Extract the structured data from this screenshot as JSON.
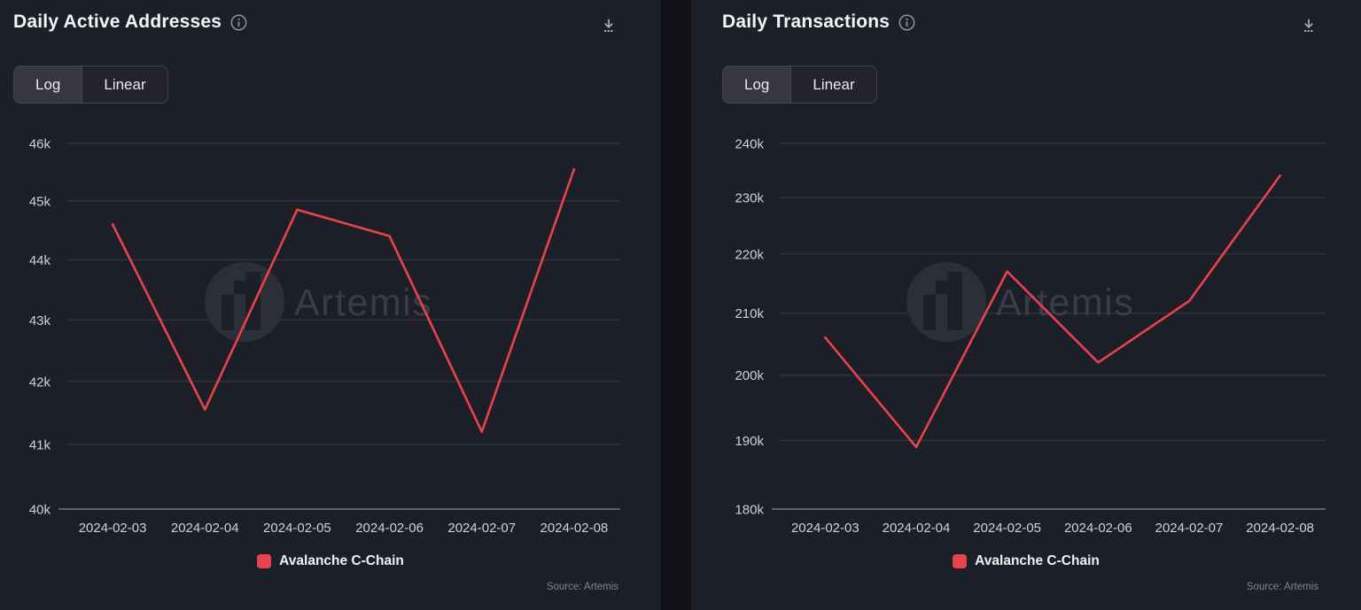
{
  "colors": {
    "page_bg": "#111218",
    "panel_bg": "#1d1f28",
    "line": "#e8434b",
    "legend_swatch": "#e8434b",
    "grid": "#383a45",
    "axis": "#5c5f6a",
    "tick_text": "#ced1d8",
    "title_text": "#f4f5f7",
    "muted_text": "#82858f",
    "watermark_circle": "#2c2e38",
    "watermark_logo": "#1d1f28",
    "watermark_text": "#3e414d",
    "icon": "#a9adb8"
  },
  "watermark": {
    "text": "Artemis",
    "icon": "artemis-logo-icon"
  },
  "icons": {
    "info": "info-icon",
    "download": "download-icon"
  },
  "panels": [
    {
      "title": "Daily Active Addresses",
      "toggle": {
        "options": [
          "Log",
          "Linear"
        ],
        "selected": "Log"
      },
      "legend": {
        "label": "Avalanche C-Chain"
      },
      "source": "Source: Artemis",
      "chart_data": {
        "type": "line",
        "scale": "log",
        "grid": true,
        "legend_position": "bottom",
        "title": "Daily Active Addresses",
        "x": [
          "2024-02-03",
          "2024-02-04",
          "2024-02-05",
          "2024-02-06",
          "2024-02-07",
          "2024-02-08"
        ],
        "series": [
          {
            "name": "Avalanche C-Chain",
            "values": [
              44600,
              41550,
              44850,
              44400,
              41200,
              45550
            ]
          }
        ],
        "ylim": [
          40000,
          46000
        ],
        "yticks": [
          {
            "label": "40k",
            "value": 40000
          },
          {
            "label": "41k",
            "value": 41000
          },
          {
            "label": "42k",
            "value": 42000
          },
          {
            "label": "43k",
            "value": 43000
          },
          {
            "label": "44k",
            "value": 44000
          },
          {
            "label": "45k",
            "value": 45000
          },
          {
            "label": "46k",
            "value": 46000
          }
        ]
      }
    },
    {
      "title": "Daily Transactions",
      "toggle": {
        "options": [
          "Log",
          "Linear"
        ],
        "selected": "Log"
      },
      "legend": {
        "label": "Avalanche C-Chain"
      },
      "source": "Source: Artemis",
      "chart_data": {
        "type": "line",
        "scale": "log",
        "grid": true,
        "legend_position": "bottom",
        "title": "Daily Transactions",
        "x": [
          "2024-02-03",
          "2024-02-04",
          "2024-02-05",
          "2024-02-06",
          "2024-02-07",
          "2024-02-08"
        ],
        "series": [
          {
            "name": "Avalanche C-Chain",
            "values": [
              206000,
              189000,
              217000,
              202000,
              212000,
              234000
            ]
          }
        ],
        "ylim": [
          180000,
          240000
        ],
        "yticks": [
          {
            "label": "180k",
            "value": 180000
          },
          {
            "label": "190k",
            "value": 190000
          },
          {
            "label": "200k",
            "value": 200000
          },
          {
            "label": "210k",
            "value": 210000
          },
          {
            "label": "220k",
            "value": 220000
          },
          {
            "label": "230k",
            "value": 230000
          },
          {
            "label": "240k",
            "value": 240000
          }
        ]
      }
    }
  ]
}
